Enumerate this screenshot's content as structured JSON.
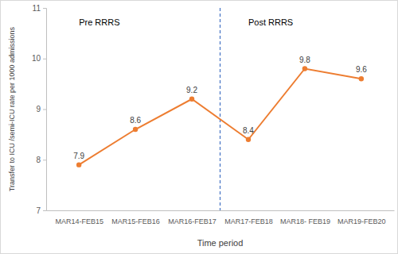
{
  "chart_data": {
    "type": "line",
    "x_label": "Time period",
    "y_label": "Transfer to ICU /semi-ICU rate per 1000 admissions",
    "annotations": [
      "Pre RRRS",
      "Post RRRS"
    ],
    "categories": [
      "MAR14-FEB15",
      "MAR15-FEB16",
      "MAR16-FEB17",
      "MAR17-FEB18",
      "MAR18- FEB19",
      "MAR19-FEB20"
    ],
    "values": [
      7.9,
      8.6,
      9.2,
      8.4,
      9.8,
      9.6
    ],
    "color": "#ed7d31",
    "marker": "circle",
    "data_labels": true,
    "grid": false,
    "ylim": [
      7,
      11
    ],
    "yticks": [
      7,
      8,
      9,
      10,
      11
    ]
  }
}
